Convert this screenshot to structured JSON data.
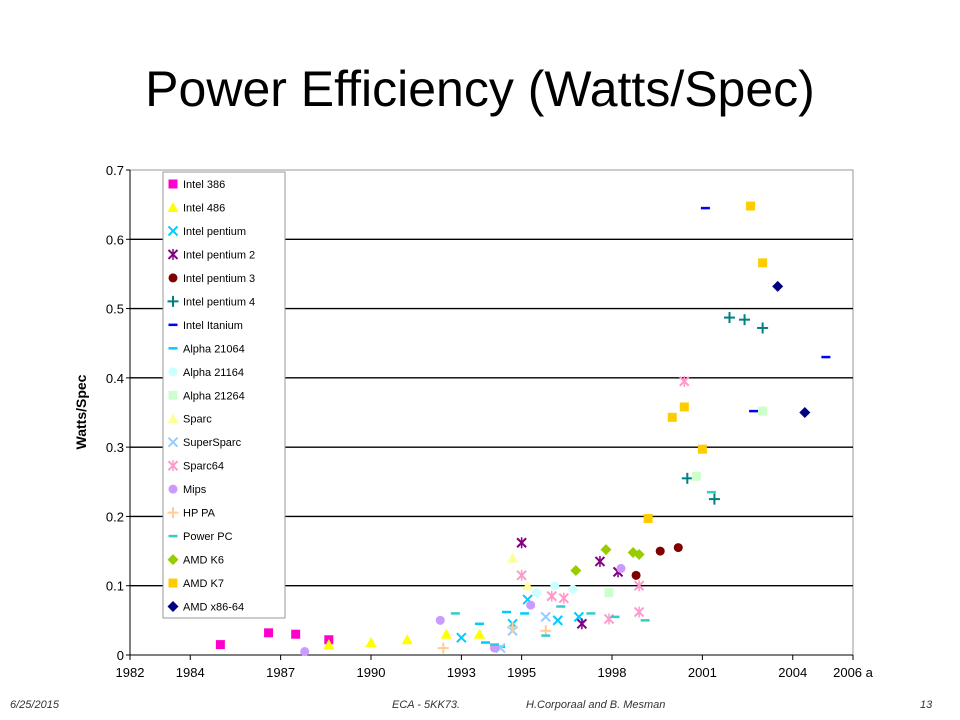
{
  "slide": {
    "title": "Power Efficiency (Watts/Spec)"
  },
  "footer": {
    "date": "6/25/2015",
    "course": "ECA - 5KK73.",
    "authors": "H.Corporaal and B. Mesman",
    "page": "13"
  },
  "chart_data": {
    "type": "scatter",
    "title": "",
    "xlabel": "",
    "ylabel": "Watts/Spec",
    "xlim": [
      1982,
      2006
    ],
    "ylim": [
      0,
      0.7
    ],
    "x_ticks": [
      1982,
      1984,
      1987,
      1990,
      1993,
      1995,
      1998,
      2001,
      2004,
      2006
    ],
    "x_tick_labels": [
      "1982",
      "1984",
      "1987",
      "1990",
      "1993",
      "1995",
      "1998",
      "2001",
      "2004",
      "2006 a"
    ],
    "y_ticks": [
      0,
      0.1,
      0.2,
      0.3,
      0.4,
      0.5,
      0.6,
      0.7
    ],
    "y_tick_labels": [
      "0",
      "0.1",
      "0.2",
      "0.3",
      "0.4",
      "0.5",
      "0.6",
      "0.7"
    ],
    "grid": "horizontal",
    "legend_position": "top-left",
    "series": [
      {
        "name": "Intel 386",
        "marker": "square",
        "color": "#ff00cc",
        "points": [
          [
            1985.0,
            0.015
          ],
          [
            1986.6,
            0.032
          ],
          [
            1987.5,
            0.03
          ],
          [
            1988.6,
            0.022
          ]
        ]
      },
      {
        "name": "Intel 486",
        "marker": "triangle",
        "color": "#ffff00",
        "points": [
          [
            1988.6,
            0.015
          ],
          [
            1990.0,
            0.018
          ],
          [
            1991.2,
            0.022
          ],
          [
            1992.5,
            0.03
          ],
          [
            1993.6,
            0.03
          ]
        ]
      },
      {
        "name": "Intel pentium",
        "marker": "x",
        "color": "#00ccff",
        "points": [
          [
            1993.0,
            0.025
          ],
          [
            1994.7,
            0.045
          ],
          [
            1995.2,
            0.08
          ],
          [
            1996.2,
            0.05
          ],
          [
            1996.9,
            0.055
          ]
        ]
      },
      {
        "name": "Intel pentium 2",
        "marker": "star",
        "color": "#800080",
        "points": [
          [
            1995.0,
            0.162
          ],
          [
            1997.0,
            0.045
          ],
          [
            1997.6,
            0.135
          ],
          [
            1998.2,
            0.12
          ]
        ]
      },
      {
        "name": "Intel pentium 3",
        "marker": "circle",
        "color": "#800000",
        "points": [
          [
            1998.8,
            0.115
          ],
          [
            1999.6,
            0.15
          ],
          [
            2000.2,
            0.155
          ]
        ]
      },
      {
        "name": "Intel pentium 4",
        "marker": "plus",
        "color": "#008080",
        "points": [
          [
            2000.5,
            0.255
          ],
          [
            2001.4,
            0.225
          ],
          [
            2001.9,
            0.487
          ],
          [
            2002.4,
            0.484
          ],
          [
            2003.0,
            0.472
          ]
        ]
      },
      {
        "name": "Intel Itanium",
        "marker": "dash",
        "color": "#0000ff",
        "points": [
          [
            2001.1,
            0.645
          ],
          [
            2002.7,
            0.352
          ],
          [
            2005.1,
            0.43
          ]
        ]
      },
      {
        "name": "Alpha 21064",
        "marker": "dash",
        "color": "#00ccff",
        "points": [
          [
            1993.6,
            0.045
          ],
          [
            1994.5,
            0.062
          ],
          [
            1995.1,
            0.06
          ],
          [
            1994.3,
            0.012
          ],
          [
            1993.8,
            0.018
          ]
        ]
      },
      {
        "name": "Alpha 21164",
        "marker": "circle",
        "color": "#ccffff",
        "points": [
          [
            1995.5,
            0.09
          ],
          [
            1996.1,
            0.1
          ],
          [
            1996.7,
            0.095
          ]
        ]
      },
      {
        "name": "Alpha 21264",
        "marker": "square",
        "color": "#ccffcc",
        "points": [
          [
            1997.9,
            0.09
          ],
          [
            2000.8,
            0.258
          ],
          [
            2003.0,
            0.352
          ]
        ]
      },
      {
        "name": "Sparc",
        "marker": "triangle",
        "color": "#ffff99",
        "points": [
          [
            1994.7,
            0.14
          ],
          [
            1995.2,
            0.1
          ]
        ]
      },
      {
        "name": "SuperSparc",
        "marker": "x",
        "color": "#99ccff",
        "points": [
          [
            1994.3,
            0.01
          ],
          [
            1994.7,
            0.035
          ],
          [
            1995.8,
            0.055
          ]
        ]
      },
      {
        "name": "Sparc64",
        "marker": "star",
        "color": "#ff99cc",
        "points": [
          [
            1995.0,
            0.115
          ],
          [
            1996.0,
            0.085
          ],
          [
            1996.4,
            0.082
          ],
          [
            1997.9,
            0.052
          ],
          [
            1998.9,
            0.062
          ],
          [
            1998.9,
            0.1
          ],
          [
            2000.4,
            0.395
          ]
        ]
      },
      {
        "name": "Mips",
        "marker": "circle",
        "color": "#cc99ff",
        "points": [
          [
            1987.8,
            0.005
          ],
          [
            1992.3,
            0.05
          ],
          [
            1994.1,
            0.01
          ],
          [
            1995.3,
            0.072
          ],
          [
            1998.3,
            0.125
          ]
        ]
      },
      {
        "name": "HP PA",
        "marker": "plus",
        "color": "#ffcc99",
        "points": [
          [
            1992.4,
            0.01
          ],
          [
            1994.7,
            0.04
          ],
          [
            1995.8,
            0.035
          ]
        ]
      },
      {
        "name": "Power PC",
        "marker": "dash",
        "color": "#33cccc",
        "points": [
          [
            1992.8,
            0.06
          ],
          [
            1994.1,
            0.015
          ],
          [
            1995.8,
            0.028
          ],
          [
            1996.3,
            0.07
          ],
          [
            1997.3,
            0.06
          ],
          [
            1998.1,
            0.055
          ],
          [
            1999.1,
            0.05
          ],
          [
            2001.3,
            0.235
          ]
        ]
      },
      {
        "name": "AMD K6",
        "marker": "diamond",
        "color": "#99cc00",
        "points": [
          [
            1996.8,
            0.122
          ],
          [
            1997.8,
            0.152
          ],
          [
            1998.7,
            0.148
          ],
          [
            1998.9,
            0.145
          ]
        ]
      },
      {
        "name": "AMD K7",
        "marker": "square",
        "color": "#ffcc00",
        "points": [
          [
            1999.2,
            0.197
          ],
          [
            2000.0,
            0.343
          ],
          [
            2000.4,
            0.358
          ],
          [
            2001.0,
            0.297
          ],
          [
            2002.6,
            0.648
          ],
          [
            2003.0,
            0.566
          ]
        ]
      },
      {
        "name": "AMD x86-64",
        "marker": "diamond",
        "color": "#000080",
        "points": [
          [
            2003.5,
            0.532
          ],
          [
            2004.4,
            0.35
          ]
        ]
      }
    ]
  }
}
